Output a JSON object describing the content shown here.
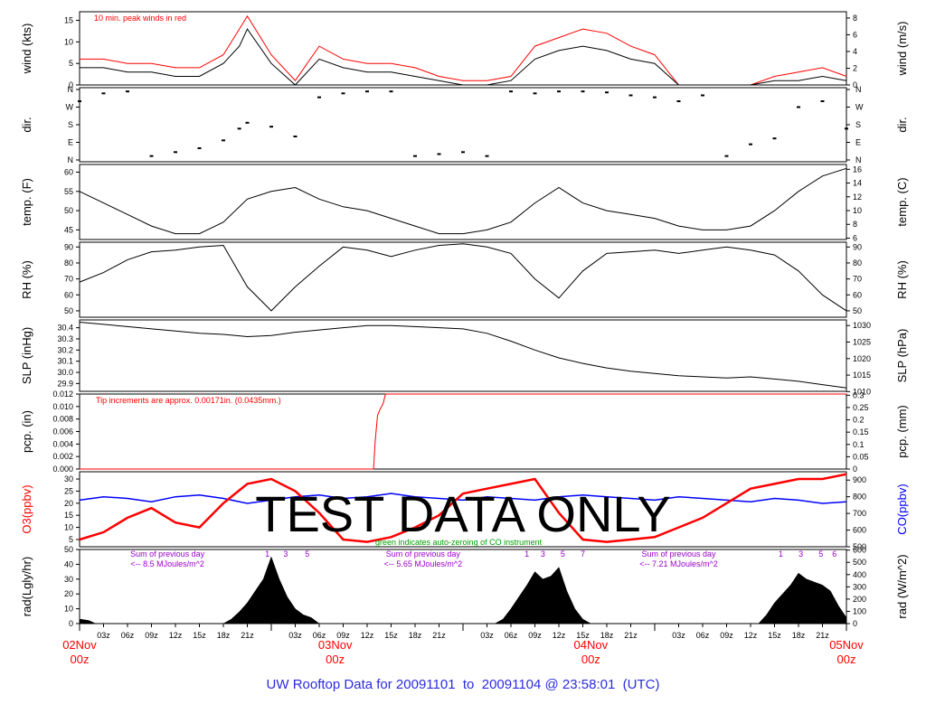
{
  "colors": {
    "axis": "#000000",
    "red": "#ff0000",
    "blue": "#0000ff",
    "green": "#00a000",
    "purple": "#9900cc",
    "title": "#2b2be0"
  },
  "title": "UW Rooftop Data for 20091101  to  20091104 @ 23:58:01  (UTC)",
  "watermark": "TEST   DATA   ONLY",
  "chart_data": [
    {
      "type": "line",
      "id": "wind",
      "ylabel": "wind (kts)",
      "ylabel_right": "wind (m/s)",
      "ylim": [
        0,
        17
      ],
      "ylim_right": [
        0,
        8.75
      ],
      "yticks": [
        "0",
        "5",
        "10",
        "15"
      ],
      "yticks_right": [
        "0",
        "2",
        "4",
        "6",
        "8"
      ],
      "annotation": "10 min. peak winds in red",
      "series": [
        {
          "name": "",
          "x": [
            0,
            3,
            6,
            9,
            12,
            15,
            18,
            20,
            21,
            24,
            27,
            30,
            33,
            36,
            39,
            42,
            45,
            48,
            51,
            54,
            57,
            60,
            63,
            66,
            69,
            72,
            75,
            78,
            81,
            84,
            87,
            90,
            93,
            96
          ],
          "y": [
            4,
            4,
            3,
            3,
            2,
            2,
            5,
            9,
            13,
            5,
            0,
            6,
            4,
            3,
            3,
            2,
            1,
            0,
            0,
            1,
            6,
            8,
            9,
            8,
            6,
            5,
            0,
            0,
            0,
            0,
            1,
            1,
            2,
            1
          ]
        },
        {
          "name": "",
          "x": [
            0,
            3,
            6,
            9,
            12,
            15,
            18,
            20,
            21,
            24,
            27,
            30,
            33,
            36,
            39,
            42,
            45,
            48,
            51,
            54,
            57,
            60,
            63,
            66,
            69,
            72,
            75,
            78,
            81,
            84,
            87,
            90,
            93,
            96
          ],
          "y": [
            6,
            6,
            5,
            5,
            4,
            4,
            7,
            13,
            16,
            7,
            1,
            9,
            6,
            5,
            5,
            4,
            2,
            1,
            1,
            2,
            9,
            11,
            13,
            12,
            9,
            7,
            0,
            0,
            0,
            0,
            2,
            3,
            4,
            2
          ]
        }
      ]
    },
    {
      "type": "scatter",
      "id": "dir",
      "ylabel": "dir.",
      "ylabel_right": "dir.",
      "ylim": [
        0,
        360
      ],
      "yticks": [
        "N",
        "E",
        "S",
        "W",
        "N"
      ],
      "yticks_right": [
        "N",
        "E",
        "S",
        "W",
        "N"
      ],
      "series": [
        {
          "name": "",
          "x": [
            0,
            3,
            6,
            9,
            12,
            15,
            18,
            20,
            21,
            24,
            27,
            30,
            33,
            36,
            39,
            42,
            45,
            48,
            51,
            54,
            57,
            60,
            63,
            66,
            69,
            72,
            75,
            78,
            81,
            84,
            87,
            90,
            93,
            96
          ],
          "y": [
            300,
            340,
            350,
            20,
            40,
            60,
            100,
            160,
            190,
            170,
            120,
            320,
            340,
            350,
            350,
            20,
            30,
            40,
            20,
            350,
            340,
            350,
            350,
            345,
            330,
            320,
            300,
            330,
            20,
            80,
            110,
            270,
            300,
            160
          ]
        }
      ]
    },
    {
      "type": "line",
      "id": "temp",
      "ylabel": "temp. (F)",
      "ylabel_right": "temp. (C)",
      "ylim": [
        42.5,
        62
      ],
      "ylim_right": [
        5.8,
        16.7
      ],
      "yticks": [
        "45",
        "50",
        "55",
        "60"
      ],
      "yticks_right": [
        "6",
        "8",
        "10",
        "12",
        "14",
        "16"
      ],
      "series": [
        {
          "name": "",
          "x": [
            0,
            3,
            6,
            9,
            12,
            15,
            18,
            21,
            24,
            27,
            30,
            33,
            36,
            39,
            42,
            45,
            48,
            51,
            54,
            57,
            60,
            63,
            66,
            69,
            72,
            75,
            78,
            81,
            84,
            87,
            90,
            93,
            96
          ],
          "y": [
            55,
            52,
            49,
            46,
            44,
            44,
            47,
            53,
            55,
            56,
            53,
            51,
            50,
            48,
            46,
            44,
            44,
            45,
            47,
            52,
            56,
            52,
            50,
            49,
            48,
            46,
            45,
            45,
            46,
            50,
            55,
            59,
            61
          ]
        }
      ]
    },
    {
      "type": "line",
      "id": "rh",
      "ylabel": "RH (%)",
      "ylabel_right": "RH (%)",
      "ylim": [
        46,
        93
      ],
      "ylim_right": [
        46,
        93
      ],
      "yticks": [
        "50",
        "60",
        "70",
        "80",
        "90"
      ],
      "yticks_right": [
        "50",
        "60",
        "70",
        "80",
        "90"
      ],
      "series": [
        {
          "name": "",
          "x": [
            0,
            3,
            6,
            9,
            12,
            15,
            18,
            21,
            24,
            27,
            30,
            33,
            36,
            39,
            42,
            45,
            48,
            51,
            54,
            57,
            60,
            63,
            66,
            69,
            72,
            75,
            78,
            81,
            84,
            87,
            90,
            93,
            96
          ],
          "y": [
            68,
            74,
            82,
            87,
            88,
            90,
            91,
            65,
            50,
            65,
            78,
            90,
            88,
            84,
            88,
            91,
            92,
            90,
            86,
            70,
            58,
            75,
            86,
            87,
            88,
            86,
            88,
            90,
            88,
            85,
            75,
            60,
            50
          ]
        }
      ]
    },
    {
      "type": "line",
      "id": "slp",
      "ylabel": "SLP (inHg)",
      "ylabel_right": "SLP (hPa)",
      "ylim": [
        29.83,
        30.47
      ],
      "ylim_right": [
        1010.1,
        1031.7
      ],
      "yticks": [
        "29.9",
        "30.0",
        "30.1",
        "30.2",
        "30.3",
        "30.4"
      ],
      "yticks_right": [
        "1010",
        "1015",
        "1020",
        "1025",
        "1030"
      ],
      "series": [
        {
          "name": "",
          "x": [
            0,
            3,
            6,
            9,
            12,
            15,
            18,
            21,
            24,
            27,
            30,
            33,
            36,
            39,
            42,
            45,
            48,
            51,
            54,
            57,
            60,
            63,
            66,
            69,
            72,
            75,
            78,
            81,
            84,
            87,
            90,
            93,
            96
          ],
          "y": [
            30.45,
            30.43,
            30.41,
            30.39,
            30.37,
            30.35,
            30.34,
            30.32,
            30.33,
            30.36,
            30.38,
            30.4,
            30.42,
            30.42,
            30.41,
            30.4,
            30.39,
            30.35,
            30.28,
            30.2,
            30.13,
            30.08,
            30.04,
            30.01,
            29.99,
            29.97,
            29.96,
            29.95,
            29.96,
            29.94,
            29.92,
            29.89,
            29.86
          ]
        }
      ]
    },
    {
      "type": "line",
      "id": "pcp",
      "ylabel": "pcp. (in)",
      "ylabel_right": "pcp. (mm)",
      "ylim": [
        0,
        0.012
      ],
      "ylim_right": [
        0,
        0.3048
      ],
      "yticks": [
        "0.000",
        "0.002",
        "0.004",
        "0.006",
        "0.008",
        "0.010",
        "0.012"
      ],
      "yticks_right": [
        "0",
        "0.05",
        "0.1",
        "0.15",
        "0.2",
        "0.25",
        "0.3"
      ],
      "annotation": "Tip increments are approx. 0.00171in. (0.0435mm.)",
      "series": [
        {
          "name": "",
          "x": [
            0,
            36.8,
            37.0,
            37.3,
            37.6,
            38.0,
            38.3,
            96
          ],
          "y": [
            0,
            0,
            0.0043,
            0.0086,
            0.0095,
            0.0105,
            0.012,
            0.012
          ]
        }
      ]
    },
    {
      "type": "line",
      "id": "chem",
      "ylabel": "O3(ppbv)",
      "ylabel_right": "CO(ppbv)",
      "ylim": [
        2,
        33
      ],
      "ylim_right": [
        500,
        950
      ],
      "yticks": [
        "5",
        "10",
        "15",
        "20",
        "25",
        "30"
      ],
      "yticks_right": [
        "500",
        "600",
        "700",
        "800",
        "900"
      ],
      "annotation": "green indicates auto-zeroing of CO instrument",
      "series": [
        {
          "name": "O3",
          "x": [
            0,
            3,
            6,
            9,
            12,
            15,
            18,
            21,
            24,
            27,
            30,
            33,
            36,
            39,
            42,
            45,
            48,
            51,
            54,
            57,
            60,
            63,
            66,
            69,
            72,
            75,
            78,
            81,
            84,
            87,
            90,
            93,
            96
          ],
          "y": [
            5,
            8,
            14,
            18,
            12,
            10,
            20,
            28,
            30,
            25,
            16,
            5,
            4,
            6,
            10,
            15,
            24,
            26,
            28,
            30,
            16,
            5,
            4,
            5,
            6,
            10,
            14,
            20,
            26,
            28,
            30,
            30,
            32
          ]
        },
        {
          "name": "CO",
          "x": [
            0,
            3,
            6,
            9,
            12,
            15,
            18,
            21,
            24,
            27,
            30,
            33,
            36,
            39,
            42,
            45,
            48,
            51,
            54,
            57,
            60,
            63,
            66,
            69,
            72,
            75,
            78,
            81,
            84,
            87,
            90,
            93,
            96
          ],
          "y": [
            780,
            800,
            790,
            770,
            800,
            810,
            790,
            760,
            780,
            800,
            810,
            790,
            800,
            820,
            800,
            790,
            780,
            800,
            790,
            780,
            800,
            810,
            800,
            790,
            780,
            800,
            790,
            780,
            770,
            790,
            780,
            760,
            770
          ]
        }
      ]
    },
    {
      "type": "area",
      "id": "rad",
      "ylabel": "rad(Lgly/hr)",
      "ylabel_right": "rad (W/m^2)",
      "ylim": [
        0,
        50
      ],
      "ylim_right": [
        0,
        605
      ],
      "yticks": [
        "0",
        "10",
        "20",
        "30",
        "40",
        "50"
      ],
      "yticks_right": [
        "0",
        "100",
        "200",
        "300",
        "400",
        "500",
        "600"
      ],
      "notes": [
        {
          "line1": "Sum of previous day",
          "line2": "<-- 8.5 MJoules/m^2",
          "x": 11
        },
        {
          "line1": "Sum of previous day",
          "line2": "<-- 5.65 MJoules/m^2",
          "x": 43
        },
        {
          "line1": "Sum of previous day",
          "line2": "<-- 7.21 MJoules/m^2",
          "x": 75
        }
      ],
      "uv_labels": [
        {
          "t": "1",
          "x": 23.5
        },
        {
          "t": "3",
          "x": 25.8
        },
        {
          "t": "5",
          "x": 28.5
        },
        {
          "t": "1",
          "x": 56
        },
        {
          "t": "3",
          "x": 58
        },
        {
          "t": "5",
          "x": 60.5
        },
        {
          "t": "7",
          "x": 63
        },
        {
          "t": "1",
          "x": 87.8
        },
        {
          "t": "3",
          "x": 90.3
        },
        {
          "t": "5",
          "x": 92.8
        },
        {
          "t": "6",
          "x": 94.5
        }
      ],
      "series": [
        {
          "name": "",
          "x": [
            0,
            0.1,
            1.2,
            2,
            15,
            18,
            19,
            20,
            21,
            22,
            23,
            24,
            25,
            26,
            27,
            28,
            29,
            30,
            39,
            40,
            51,
            52,
            53,
            54,
            55,
            56,
            57,
            58,
            59,
            60,
            61,
            62,
            63,
            64,
            75,
            76,
            84,
            85,
            86,
            87,
            88,
            89,
            90,
            91,
            92,
            93,
            94,
            95,
            96
          ],
          "y": [
            0,
            3,
            2,
            0,
            0,
            0,
            3,
            8,
            14,
            22,
            30,
            45,
            30,
            18,
            10,
            6,
            4,
            0,
            0,
            0,
            0,
            0,
            3,
            10,
            18,
            26,
            35,
            30,
            32,
            38,
            22,
            10,
            3,
            0,
            0,
            0,
            0,
            0,
            6,
            14,
            20,
            26,
            34,
            30,
            28,
            26,
            22,
            12,
            4
          ]
        }
      ]
    },
    {
      "type": "axis",
      "id": "time-axis",
      "xlim": [
        0,
        96
      ],
      "hour_labels": [
        "03z",
        "06z",
        "09z",
        "12z",
        "15z",
        "18z",
        "21z"
      ],
      "days": [
        {
          "label": "02Nov",
          "sub": "00z",
          "x": 0
        },
        {
          "label": "03Nov",
          "sub": "00z",
          "x": 32
        },
        {
          "label": "04Nov",
          "sub": "00z",
          "x": 64
        },
        {
          "label": "05Nov",
          "sub": "00z",
          "x": 96
        }
      ]
    }
  ]
}
